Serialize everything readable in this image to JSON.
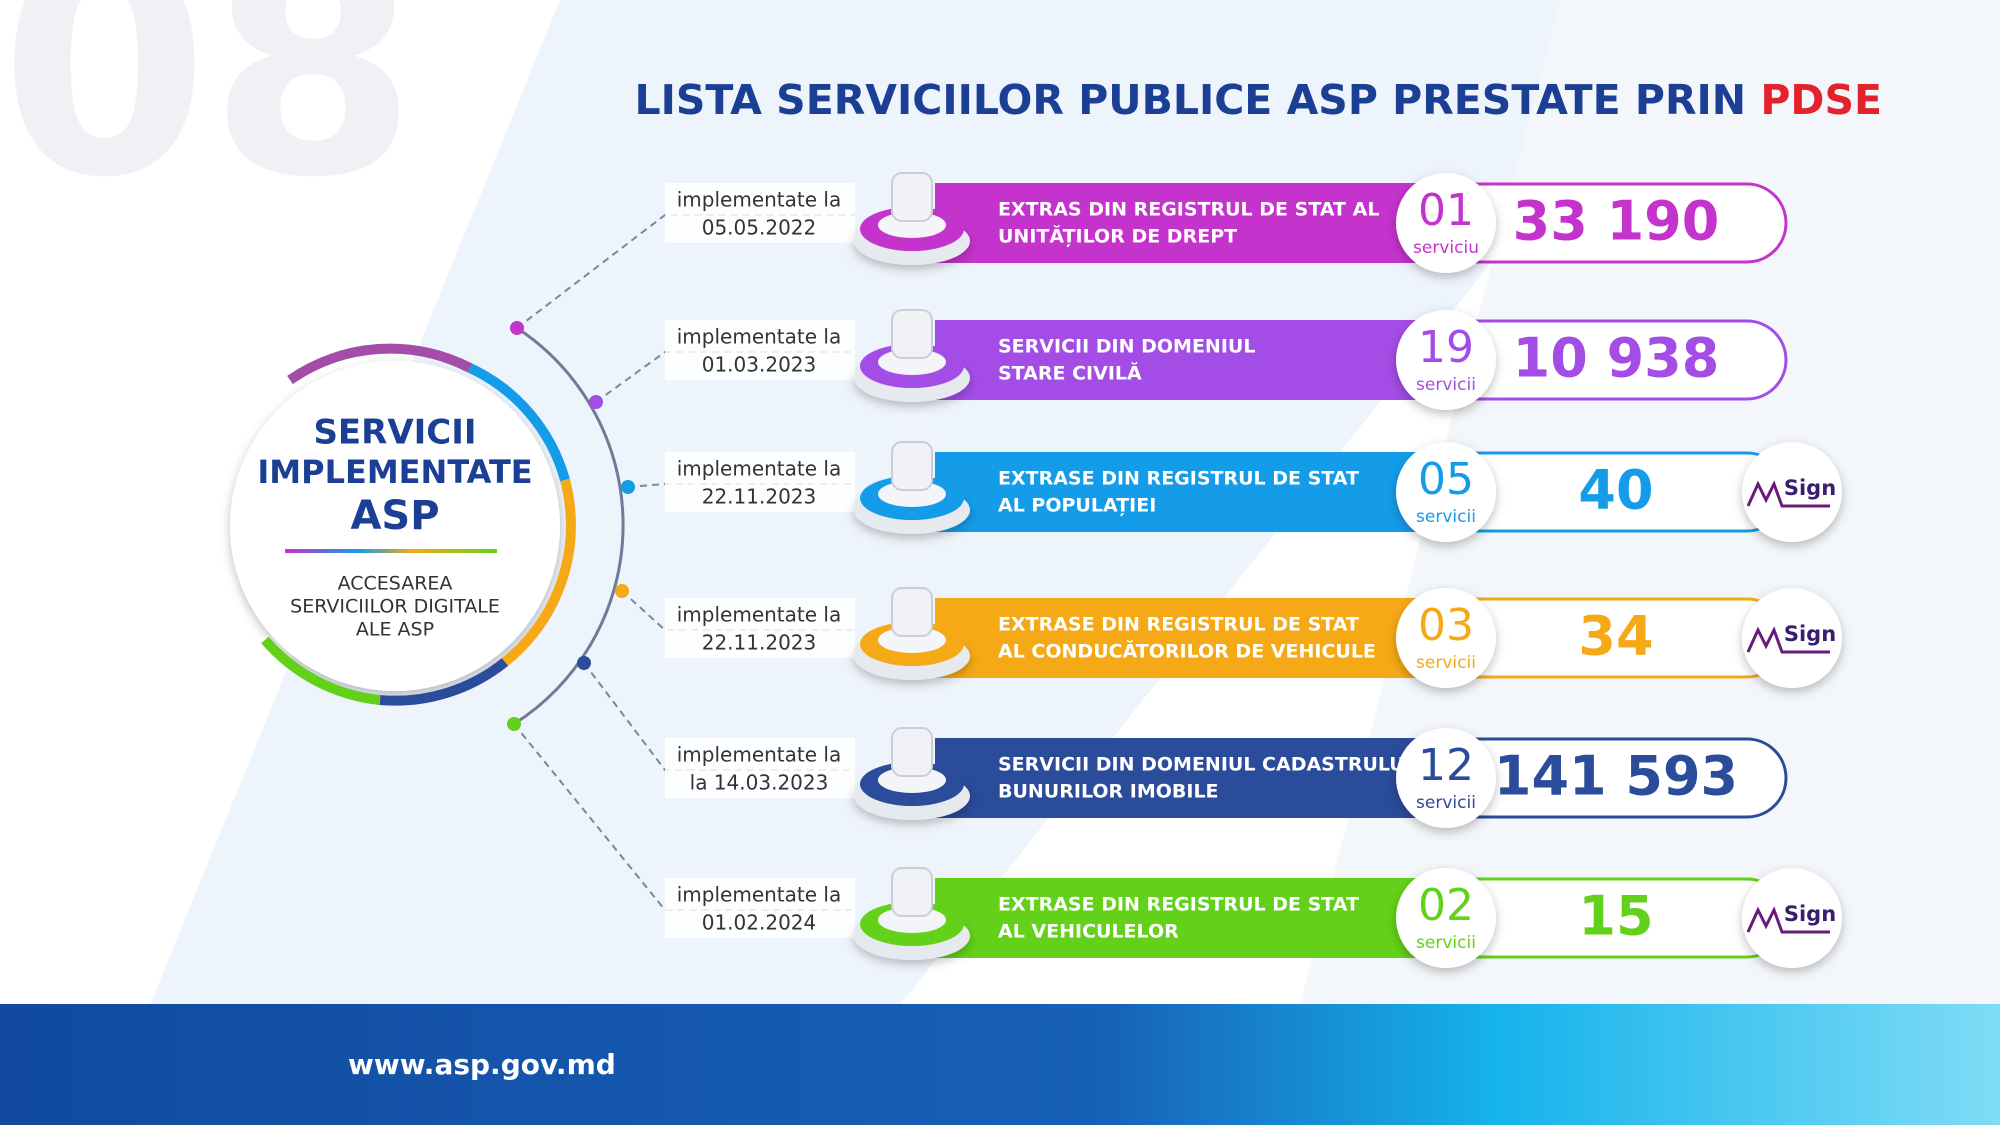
{
  "page_number": "08",
  "title": {
    "main": "LISTA SERVICIILOR PUBLICE ASP PRESTATE PRIN",
    "highlight": "PDSE"
  },
  "hub": {
    "title_lines": [
      "SERVICII",
      "IMPLEMENTATE",
      "ASP"
    ],
    "subtitle_lines": [
      "ACCESAREA",
      "SERVICIILOR DIGITALE",
      "ALE ASP"
    ]
  },
  "msign_logo": "Sign",
  "items": [
    {
      "date_label": "implementate la",
      "date": "05.05.2022",
      "name_lines": [
        "EXTRAS DIN REGISTRUL DE STAT AL",
        "UNITĂȚILOR DE DREPT"
      ],
      "count": "01",
      "count_unit": "serviciu",
      "total": "33 190",
      "color": "#c433cc",
      "msign": false
    },
    {
      "date_label": "implementate la",
      "date": "01.03.2023",
      "name_lines": [
        "SERVICII DIN DOMENIUL",
        "STARE CIVILĂ"
      ],
      "count": "19",
      "count_unit": "servicii",
      "total": "10 938",
      "color": "#a34de6",
      "msign": false
    },
    {
      "date_label": "implementate la",
      "date": "22.11.2023",
      "name_lines": [
        "EXTRASE DIN REGISTRUL DE STAT",
        "AL POPULAȚIEI"
      ],
      "count": "05",
      "count_unit": "servicii",
      "total": "40",
      "color": "#149ce9",
      "msign": true
    },
    {
      "date_label": "implementate la",
      "date": "22.11.2023",
      "name_lines": [
        "EXTRASE DIN REGISTRUL DE STAT",
        "AL CONDUCĂTORILOR DE VEHICULE"
      ],
      "count": "03",
      "count_unit": "servicii",
      "total": "34",
      "color": "#f5a916",
      "msign": true
    },
    {
      "date_label": "implementate la",
      "date": "la 14.03.2023",
      "name_lines": [
        "SERVICII DIN DOMENIUL CADASTRULUI",
        "BUNURILOR IMOBILE"
      ],
      "count": "12",
      "count_unit": "servicii",
      "total": "141 593",
      "color": "#2b4b9b",
      "msign": false
    },
    {
      "date_label": "implementate la",
      "date": "01.02.2024",
      "name_lines": [
        "EXTRASE DIN REGISTRUL DE STAT",
        "AL VEHICULELOR"
      ],
      "count": "02",
      "count_unit": "servicii",
      "total": "15",
      "color": "#63d119",
      "msign": true
    }
  ],
  "footer": {
    "url": "www.asp.gov.md"
  }
}
